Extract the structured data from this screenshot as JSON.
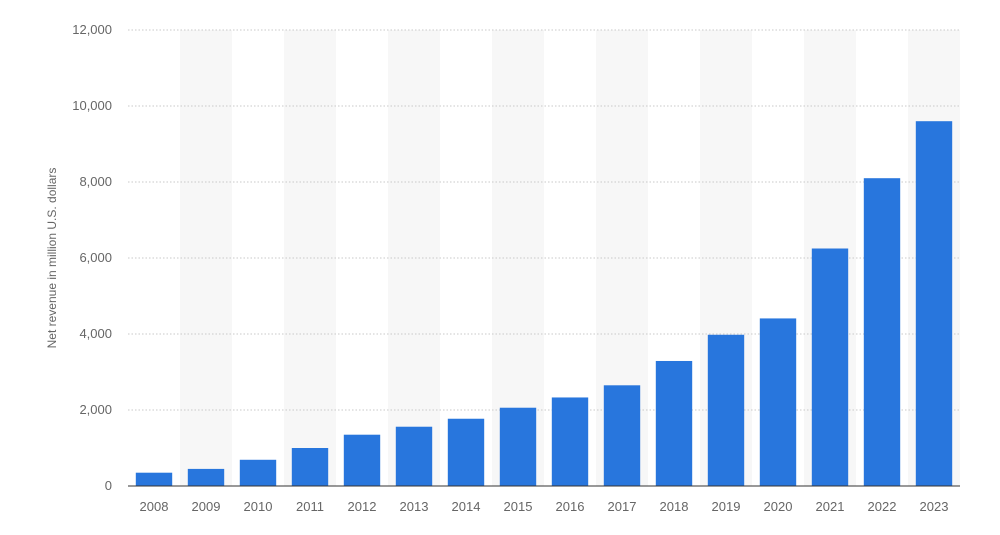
{
  "chart_data": {
    "type": "bar",
    "title": "",
    "xlabel": "",
    "ylabel": "Net revenue in million U.S. dollars",
    "categories": [
      "2008",
      "2009",
      "2010",
      "2011",
      "2012",
      "2013",
      "2014",
      "2015",
      "2016",
      "2017",
      "2018",
      "2019",
      "2020",
      "2021",
      "2022",
      "2023"
    ],
    "values": [
      350,
      450,
      690,
      1000,
      1350,
      1560,
      1770,
      2060,
      2330,
      2650,
      3290,
      3980,
      4410,
      6250,
      8100,
      9600
    ],
    "ylim": [
      0,
      12000
    ],
    "yticks": [
      0,
      2000,
      4000,
      6000,
      8000,
      10000,
      12000
    ],
    "ytick_labels": [
      "0",
      "2,000",
      "4,000",
      "6,000",
      "8,000",
      "10,000",
      "12,000"
    ],
    "grid": true,
    "grid_style": "dotted",
    "alternating_band_background": true,
    "colors": {
      "bar": "#2876dd",
      "band": "#f7f7f7",
      "grid": "#c8c8c8",
      "axis": "#333333",
      "text": "#666666"
    }
  }
}
